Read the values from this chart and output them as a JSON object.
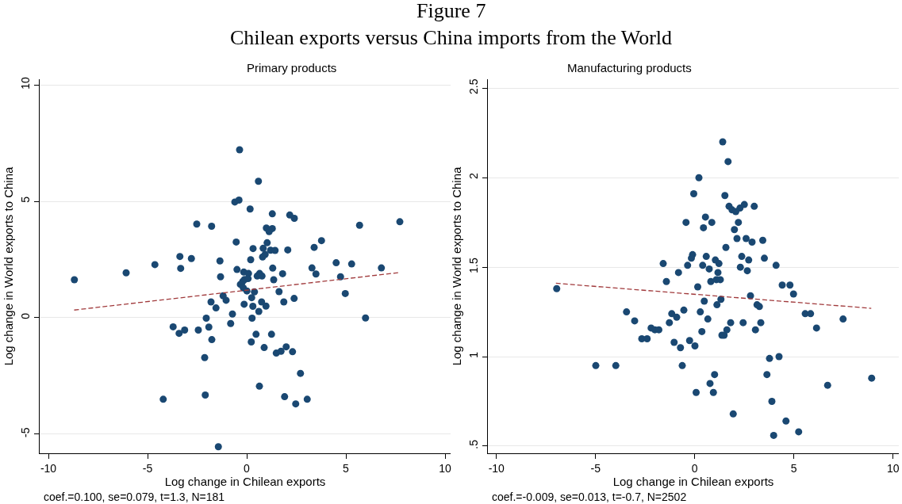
{
  "chart_data": [
    {
      "type": "scatter",
      "title": "Primary products",
      "xlabel": "Log change in Chilean exports",
      "ylabel": "Log change in World exports to China",
      "annotations": [
        "Figure 7",
        "Chilean exports versus China imports from the World",
        "coef.=0.100, se=0.079, t=1.3, N=181"
      ],
      "xlim": [
        -10.44,
        10.28
      ],
      "ylim": [
        -5.82,
        10.24
      ],
      "xticks": [
        -10,
        -5,
        0,
        5,
        10
      ],
      "yticks": [
        -5,
        0,
        5,
        10
      ],
      "grid": "y",
      "marker": "circle",
      "series": [
        {
          "color": "#1a4872",
          "x": [
            -8.69,
            -6.08,
            -4.63,
            -3.37,
            -3.33,
            -2.79,
            -2.52,
            -1.77,
            -1.35,
            -1.32,
            -0.36,
            0.59,
            -0.6,
            -0.39,
            0.17,
            1.29,
            2.17,
            2.4,
            0.99,
            1.29,
            1.13,
            -0.53,
            0.32,
            1.03,
            0.83,
            1.2,
            1.43,
            2.07,
            0.93,
            0.8,
            0.2,
            3.4,
            3.77,
            5.69,
            7.72,
            3.29,
            3.49,
            4.51,
            5.29,
            6.79,
            4.73,
            4.97,
            -0.49,
            -0.15,
            0.09,
            0.65,
            0.53,
            0.77,
            1.31,
            1.81,
            1.36,
            -0.11,
            0.07,
            -0.2,
            -0.32,
            -0.17,
            0.01,
            0.39,
            -1.19,
            -1.04,
            -1.8,
            -1.55,
            0.25,
            -0.13,
            0.31,
            0.75,
            0.97,
            0.61,
            1.63,
            1.87,
            2.39,
            -0.72,
            -2.04,
            0.27,
            5.99,
            -3.71,
            -3.41,
            -3.13,
            -2.44,
            -1.91,
            -0.81,
            -1.76,
            0.47,
            1.25,
            0.23,
            0.88,
            1.49,
            1.73,
            1.99,
            2.31,
            -2.12,
            2.71,
            0.64,
            -4.21,
            -2.09,
            1.91,
            2.47,
            3.05,
            -1.43
          ],
          "values": [
            1.63,
            1.93,
            2.28,
            2.63,
            2.12,
            2.54,
            4.02,
            3.93,
            2.44,
            1.76,
            7.21,
            5.86,
            4.97,
            5.05,
            4.67,
            4.46,
            4.41,
            4.27,
            3.85,
            3.83,
            3.7,
            3.25,
            2.97,
            3.22,
            2.98,
            2.9,
            2.89,
            2.91,
            2.72,
            2.61,
            2.49,
            3.02,
            3.31,
            3.97,
            4.12,
            2.14,
            1.88,
            2.36,
            2.31,
            2.14,
            1.76,
            1.04,
            2.07,
            1.96,
            1.9,
            1.9,
            1.79,
            1.79,
            2.13,
            1.89,
            1.63,
            1.64,
            1.68,
            1.56,
            1.43,
            1.28,
            1.15,
            1.11,
            0.94,
            0.75,
            0.68,
            0.42,
            0.86,
            0.58,
            0.49,
            0.68,
            0.5,
            0.27,
            1.12,
            0.68,
            0.83,
            0.16,
            -0.02,
            -0.02,
            -0.01,
            -0.39,
            -0.67,
            -0.53,
            -0.53,
            -0.4,
            -0.25,
            -0.94,
            -0.71,
            -0.71,
            -1.04,
            -1.28,
            -1.52,
            -1.44,
            -1.25,
            -1.46,
            -1.71,
            -2.39,
            -2.94,
            -3.5,
            -3.32,
            -3.39,
            -3.7,
            -3.5,
            -5.54
          ]
        },
        {
          "type": "line",
          "color": "#a0393b",
          "line_style": "dashed",
          "marker": "none",
          "x": [
            -8.7,
            7.7
          ],
          "values": [
            0.33,
            1.94
          ]
        }
      ]
    },
    {
      "type": "scatter",
      "title": "Manufacturing products",
      "xlabel": "Log change in Chilean exports",
      "ylabel": "Log change in World exports to China",
      "annotations": [
        "coef.=-0.009, se=0.013, t=-0.7, N=2502"
      ],
      "xlim": [
        -10.43,
        10.29
      ],
      "ylim": [
        0.46,
        2.55
      ],
      "xticks": [
        -10,
        -5,
        0,
        5,
        10
      ],
      "yticks": [
        {
          "value": 0.5,
          "label": ".5"
        },
        1,
        1.5,
        2,
        2.5
      ],
      "grid": "y",
      "marker": "circle",
      "series": [
        {
          "color": "#1a4872",
          "x": [
            1.41,
            1.68,
            0.21,
            -0.05,
            1.52,
            1.73,
            1.88,
            2.07,
            2.28,
            2.5,
            3.0,
            0.54,
            -0.44,
            0.86,
            2.2,
            0.44,
            2.0,
            2.13,
            2.59,
            2.89,
            3.43,
            1.57,
            -0.11,
            -0.17,
            0.58,
            1.04,
            2.37,
            2.72,
            3.51,
            -1.59,
            -0.36,
            0.4,
            1.22,
            0.73,
            2.3,
            2.65,
            4.1,
            -0.82,
            1.17,
            -1.43,
            0.81,
            1.09,
            1.29,
            0.15,
            4.41,
            4.8,
            4.98,
            2.81,
            -6.96,
            0.48,
            1.32,
            1.12,
            3.14,
            3.26,
            -3.44,
            -1.16,
            -0.55,
            0.28,
            -0.91,
            0.66,
            -3.03,
            1.81,
            2.44,
            3.33,
            5.57,
            5.84,
            7.48,
            6.14,
            -1.28,
            -2.2,
            -2.01,
            -1.81,
            0.36,
            1.62,
            3.06,
            1.37,
            1.48,
            -2.67,
            -2.4,
            -0.26,
            -1.04,
            -0.72,
            0.01,
            3.77,
            4.25,
            -4.99,
            -3.98,
            -0.63,
            1.0,
            3.64,
            8.92,
            6.7,
            0.77,
            0.07,
            0.94,
            3.89,
            1.94,
            4.6,
            5.24,
            3.98
          ],
          "values": [
            2.2,
            2.09,
            2.0,
            1.91,
            1.9,
            1.84,
            1.82,
            1.81,
            1.83,
            1.85,
            1.84,
            1.78,
            1.75,
            1.75,
            1.75,
            1.72,
            1.71,
            1.66,
            1.66,
            1.64,
            1.65,
            1.61,
            1.57,
            1.55,
            1.56,
            1.54,
            1.56,
            1.54,
            1.55,
            1.52,
            1.51,
            1.51,
            1.52,
            1.49,
            1.5,
            1.48,
            1.51,
            1.47,
            1.47,
            1.42,
            1.42,
            1.43,
            1.43,
            1.39,
            1.4,
            1.4,
            1.35,
            1.34,
            1.38,
            1.31,
            1.32,
            1.29,
            1.29,
            1.28,
            1.25,
            1.24,
            1.26,
            1.25,
            1.22,
            1.21,
            1.2,
            1.19,
            1.19,
            1.19,
            1.24,
            1.24,
            1.21,
            1.16,
            1.19,
            1.16,
            1.15,
            1.15,
            1.14,
            1.15,
            1.15,
            1.12,
            1.12,
            1.1,
            1.1,
            1.09,
            1.08,
            1.05,
            1.06,
            0.99,
            1.0,
            0.95,
            0.95,
            0.95,
            0.9,
            0.9,
            0.88,
            0.84,
            0.85,
            0.8,
            0.8,
            0.75,
            0.68,
            0.64,
            0.58,
            0.56
          ]
        },
        {
          "type": "line",
          "color": "#a0393b",
          "line_style": "dashed",
          "marker": "none",
          "x": [
            -7.0,
            8.9
          ],
          "values": [
            1.41,
            1.27
          ]
        }
      ]
    }
  ]
}
